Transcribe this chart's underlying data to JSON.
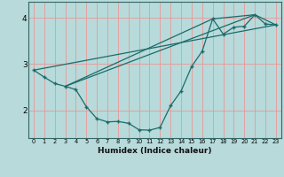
{
  "xlabel": "Humidex (Indice chaleur)",
  "background_color": "#b8dada",
  "plot_bg_color": "#b8dada",
  "grid_color": "#e89898",
  "line_color": "#1a6b6b",
  "ylim": [
    1.4,
    4.35
  ],
  "xlim": [
    -0.5,
    23.5
  ],
  "yticks": [
    2,
    3,
    4
  ],
  "xticks": [
    0,
    1,
    2,
    3,
    4,
    5,
    6,
    7,
    8,
    9,
    10,
    11,
    12,
    13,
    14,
    15,
    16,
    17,
    18,
    19,
    20,
    21,
    22,
    23
  ],
  "curve1_x": [
    0,
    1,
    2,
    3,
    4,
    5,
    6,
    7,
    8,
    9,
    10,
    11,
    12,
    13,
    14,
    15,
    16,
    17,
    18,
    19,
    20,
    21,
    22,
    23
  ],
  "curve1_y": [
    2.87,
    2.72,
    2.58,
    2.52,
    2.45,
    2.08,
    1.82,
    1.75,
    1.76,
    1.72,
    1.58,
    1.57,
    1.63,
    2.1,
    2.42,
    2.95,
    3.28,
    3.98,
    3.65,
    3.8,
    3.82,
    4.07,
    3.87,
    3.85
  ],
  "line1_x": [
    0,
    23
  ],
  "line1_y": [
    2.87,
    3.85
  ],
  "line2_x": [
    3,
    17
  ],
  "line2_y": [
    2.52,
    3.98
  ],
  "line3_x": [
    3,
    21
  ],
  "line3_y": [
    2.52,
    4.07
  ],
  "line4_x": [
    17,
    21,
    23
  ],
  "line4_y": [
    3.98,
    4.07,
    3.85
  ]
}
